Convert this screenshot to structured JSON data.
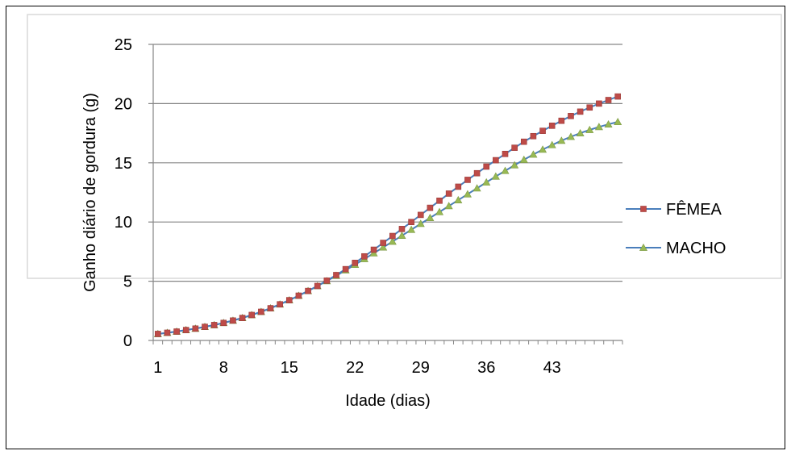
{
  "chart_data": {
    "type": "line",
    "title": "",
    "xlabel": "Idade (dias)",
    "ylabel": "Ganho diário de gordura (g)",
    "ylim": [
      0,
      25
    ],
    "yticks": [
      0,
      5,
      10,
      15,
      20,
      25
    ],
    "xlim": [
      1,
      50
    ],
    "xticks": [
      1,
      8,
      15,
      22,
      29,
      36,
      43
    ],
    "grid": "horizontal",
    "legend_position": "right",
    "x": [
      1,
      2,
      3,
      4,
      5,
      6,
      7,
      8,
      9,
      10,
      11,
      12,
      13,
      14,
      15,
      16,
      17,
      18,
      19,
      20,
      21,
      22,
      23,
      24,
      25,
      26,
      27,
      28,
      29,
      30,
      31,
      32,
      33,
      34,
      35,
      36,
      37,
      38,
      39,
      40,
      41,
      42,
      43,
      44,
      45,
      46,
      47,
      48,
      49,
      50
    ],
    "series": [
      {
        "name": "FÊMEA",
        "color": "#4a7ebb",
        "marker": "square",
        "marker_color": "#be4b48",
        "values": [
          0.55,
          0.65,
          0.75,
          0.88,
          1.0,
          1.15,
          1.3,
          1.48,
          1.68,
          1.9,
          2.15,
          2.42,
          2.72,
          3.05,
          3.4,
          3.78,
          4.18,
          4.6,
          5.05,
          5.52,
          6.02,
          6.55,
          7.1,
          7.66,
          8.24,
          8.82,
          9.41,
          10.0,
          10.6,
          11.2,
          11.8,
          12.4,
          12.98,
          13.56,
          14.12,
          14.68,
          15.22,
          15.75,
          16.27,
          16.78,
          17.25,
          17.7,
          18.13,
          18.55,
          18.95,
          19.32,
          19.67,
          20.0,
          20.3,
          20.6
        ]
      },
      {
        "name": "MACHO",
        "color": "#4a7ebb",
        "marker": "triangle",
        "marker_color": "#98b954",
        "values": [
          0.55,
          0.65,
          0.75,
          0.88,
          1.0,
          1.15,
          1.3,
          1.48,
          1.68,
          1.9,
          2.15,
          2.42,
          2.72,
          3.05,
          3.4,
          3.78,
          4.18,
          4.6,
          5.02,
          5.47,
          5.93,
          6.4,
          6.88,
          7.37,
          7.86,
          8.35,
          8.85,
          9.35,
          9.85,
          10.35,
          10.85,
          11.35,
          11.85,
          12.35,
          12.85,
          13.35,
          13.85,
          14.32,
          14.8,
          15.26,
          15.7,
          16.12,
          16.5,
          16.87,
          17.2,
          17.5,
          17.78,
          18.03,
          18.25,
          18.45
        ]
      }
    ]
  }
}
